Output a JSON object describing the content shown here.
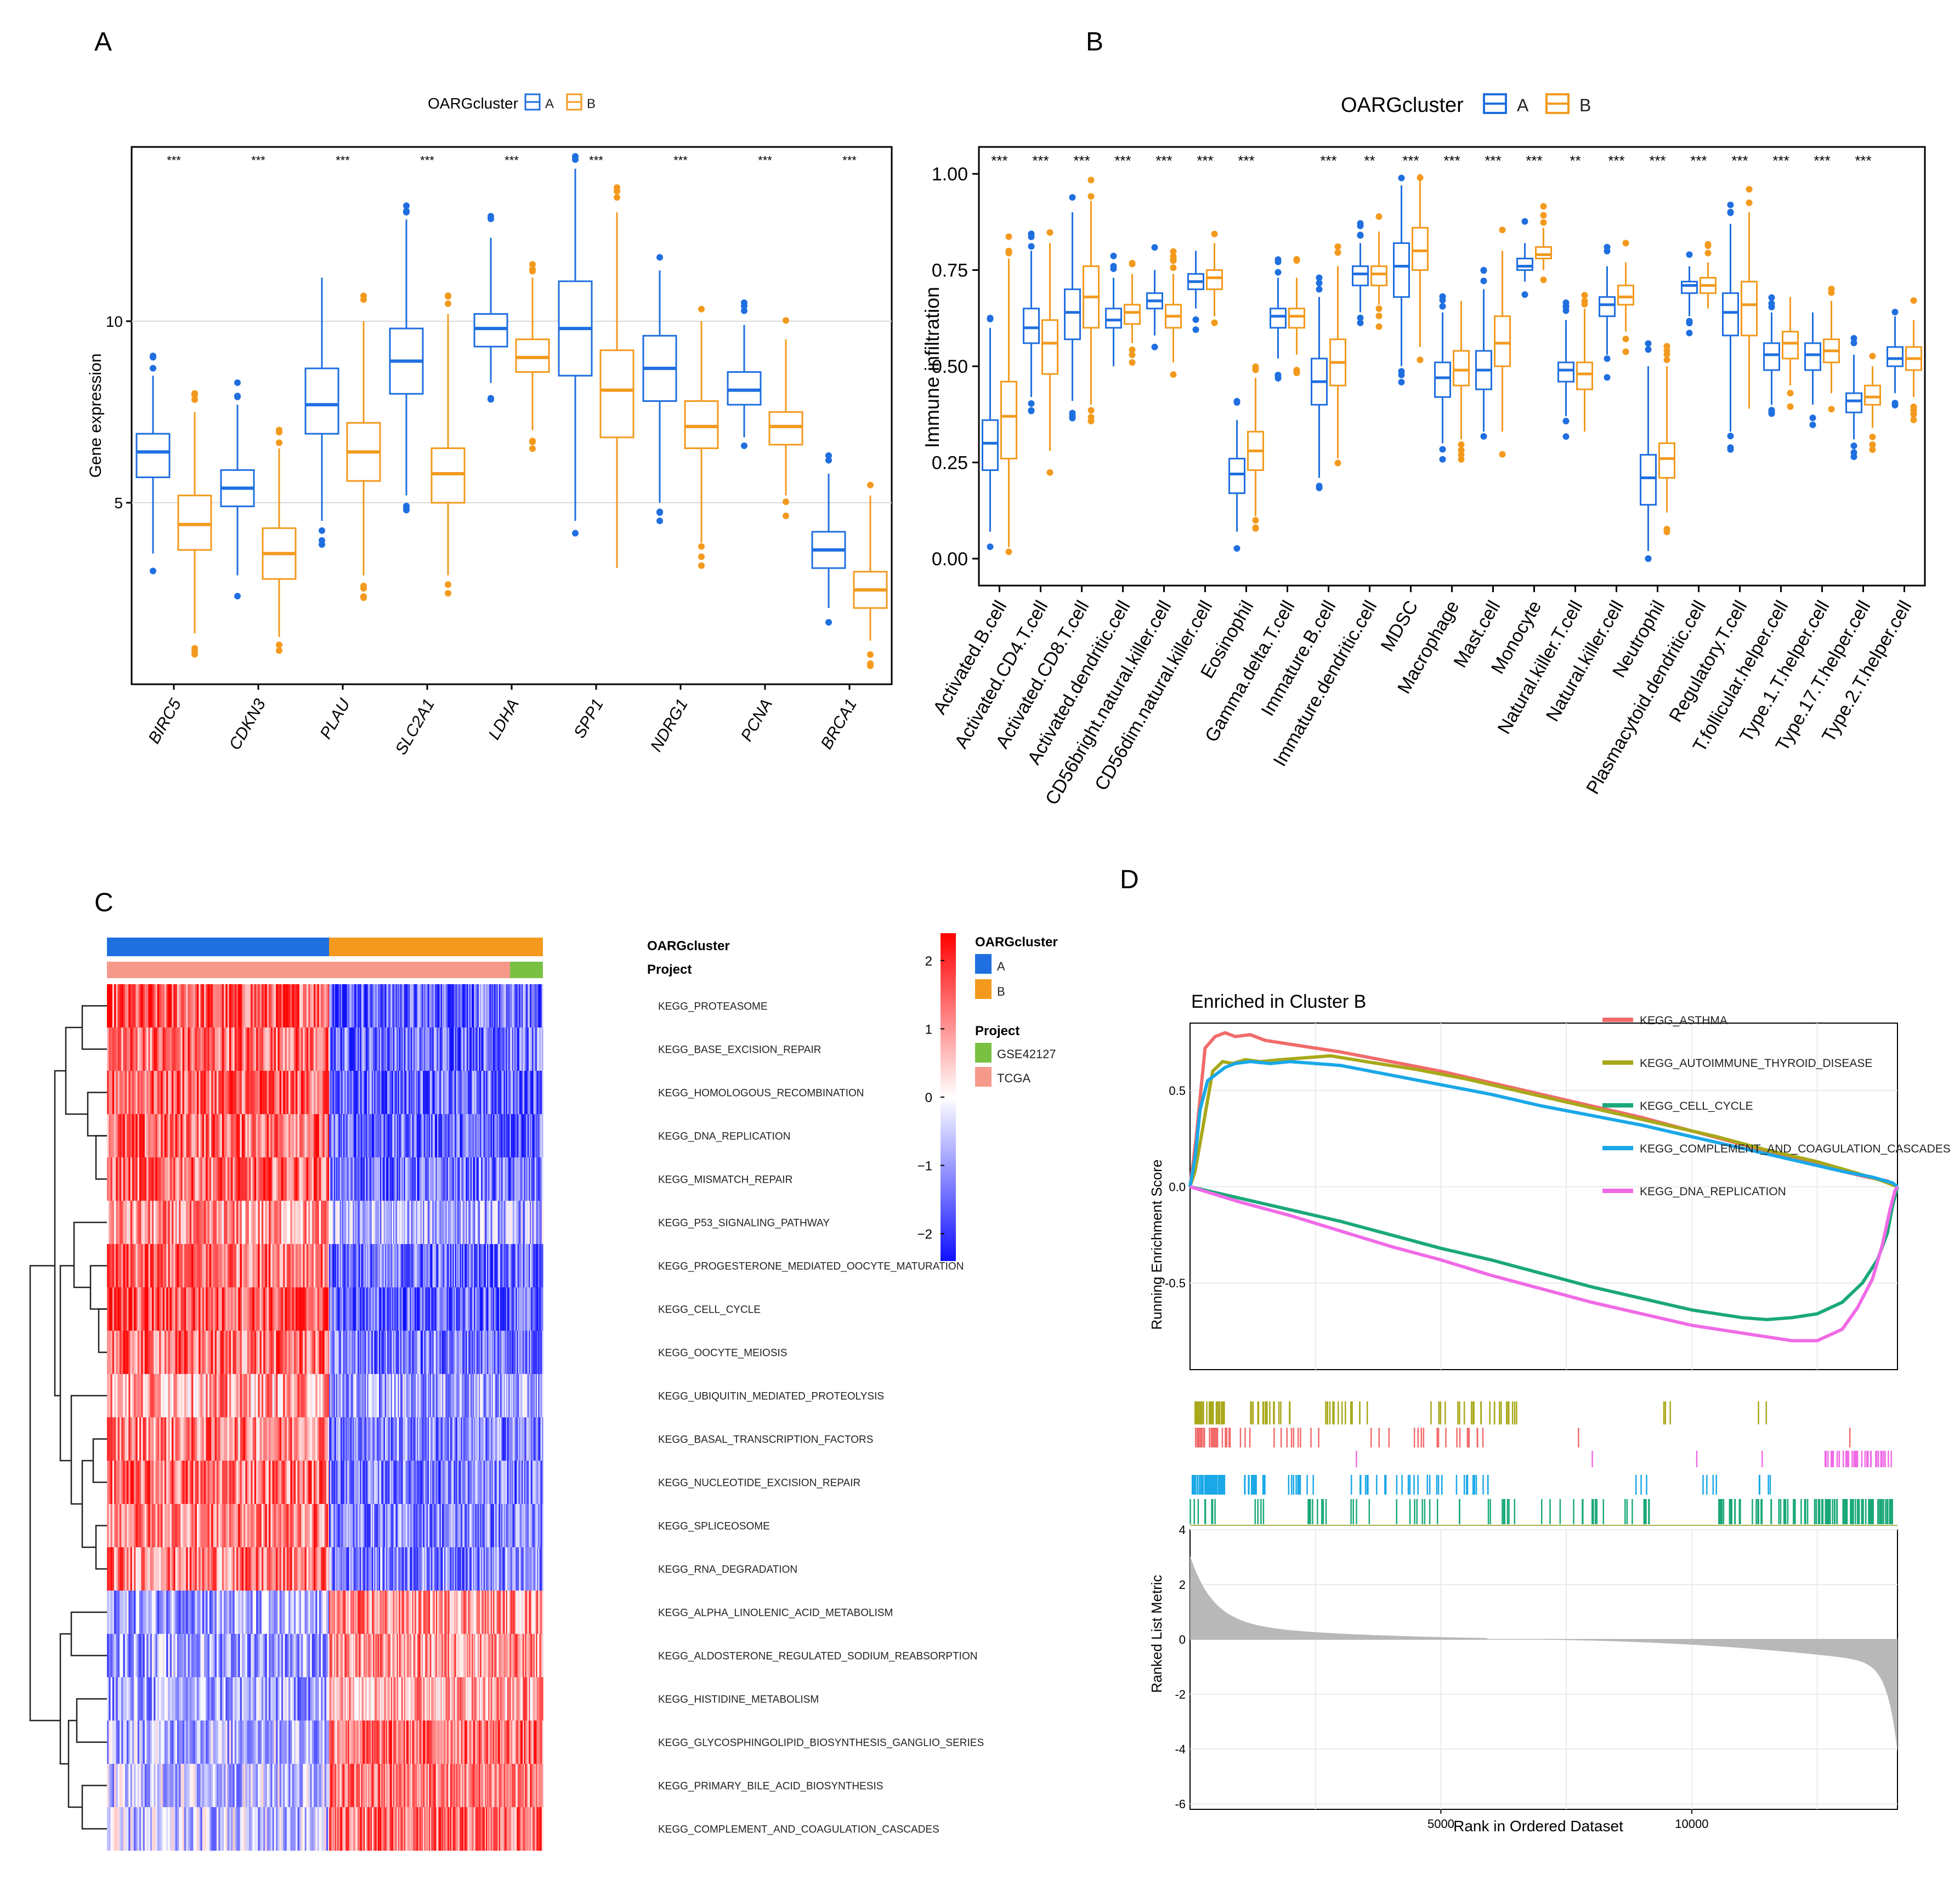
{
  "panels": {
    "a": "A",
    "b": "B",
    "c": "C",
    "d": "D"
  },
  "colors": {
    "cluster_a": "#1f6fe0",
    "cluster_b": "#f39a1e",
    "gse": "#7ac143",
    "tcga": "#f59a8a"
  },
  "chart_data": [
    {
      "id": "A",
      "type": "box",
      "legend_title": "OARGcluster",
      "legend_items": [
        "A",
        "B"
      ],
      "ylabel": "Gene expression",
      "yticks": [
        5,
        10
      ],
      "ylim": [
        0,
        14.8
      ],
      "categories": [
        "BIRC5",
        "CDKN3",
        "PLAU",
        "SLC2A1",
        "LDHA",
        "SPP1",
        "NDRG1",
        "PCNA",
        "BRCA1"
      ],
      "significance": [
        "***",
        "***",
        "***",
        "***",
        "***",
        "***",
        "***",
        "***",
        "***"
      ],
      "series": [
        {
          "name": "A",
          "boxes": [
            [
              3.6,
              5.7,
              6.4,
              6.9,
              8.5
            ],
            [
              3.0,
              4.9,
              5.4,
              5.9,
              7.7
            ],
            [
              4.5,
              6.9,
              7.7,
              8.7,
              11.2
            ],
            [
              5.2,
              8.0,
              8.9,
              9.8,
              12.8
            ],
            [
              8.3,
              9.3,
              9.8,
              10.2,
              12.3
            ],
            [
              4.5,
              8.5,
              9.8,
              11.1,
              14.2
            ],
            [
              5.0,
              7.8,
              8.7,
              9.6,
              11.4
            ],
            [
              6.8,
              7.7,
              8.1,
              8.6,
              9.9
            ],
            [
              2.1,
              3.2,
              3.7,
              4.2,
              5.8
            ]
          ]
        },
        {
          "name": "B",
          "boxes": [
            [
              1.4,
              3.7,
              4.4,
              5.2,
              7.5
            ],
            [
              1.3,
              2.9,
              3.6,
              4.3,
              6.5
            ],
            [
              3.0,
              5.6,
              6.4,
              7.2,
              10.0
            ],
            [
              3.0,
              5.0,
              5.8,
              6.5,
              10.2
            ],
            [
              7.0,
              8.6,
              9.0,
              9.5,
              11.2
            ],
            [
              3.2,
              6.8,
              8.1,
              9.2,
              13.0
            ],
            [
              3.9,
              6.5,
              7.1,
              7.8,
              10.0
            ],
            [
              5.2,
              6.6,
              7.1,
              7.5,
              9.5
            ],
            [
              1.2,
              2.1,
              2.6,
              3.1,
              5.2
            ]
          ]
        }
      ]
    },
    {
      "id": "B",
      "type": "box",
      "legend_title": "OARGcluster",
      "legend_items": [
        "A",
        "B"
      ],
      "ylabel": "Immune infiltration",
      "yticks": [
        "0.00",
        "0.25",
        "0.50",
        "0.75",
        "1.00"
      ],
      "ylim": [
        -0.07,
        1.07
      ],
      "categories": [
        "Activated.B.cell",
        "Activated.CD4.T.cell",
        "Activated.CD8.T.cell",
        "Activated.dendritic.cell",
        "CD56bright.natural.killer.cell",
        "CD56dim.natural.killer.cell",
        "Eosinophil",
        "Gamma.delta.T.cell",
        "Immature.B.cell",
        "Immature.dendritic.cell",
        "MDSC",
        "Macrophage",
        "Mast.cell",
        "Monocyte",
        "Natural.killer.T.cell",
        "Natural.killer.cell",
        "Neutrophil",
        "Plasmacytoid.dendritic.cell",
        "Regulatory.T.cell",
        "T.follicular.helper.cell",
        "Type.1.T.helper.cell",
        "Type.17.T.helper.cell",
        "Type.2.T.helper.cell"
      ],
      "significance": [
        "***",
        "***",
        "***",
        "***",
        "***",
        "***",
        "***",
        "",
        "***",
        "**",
        "***",
        "***",
        "***",
        "***",
        "**",
        "***",
        "***",
        "***",
        "***",
        "***",
        "***",
        "***",
        ""
      ],
      "series": [
        {
          "name": "A",
          "boxes": [
            [
              0.07,
              0.23,
              0.3,
              0.36,
              0.6
            ],
            [
              0.42,
              0.56,
              0.6,
              0.65,
              0.8
            ],
            [
              0.41,
              0.57,
              0.64,
              0.7,
              0.9
            ],
            [
              0.5,
              0.6,
              0.62,
              0.65,
              0.73
            ],
            [
              0.58,
              0.65,
              0.67,
              0.69,
              0.75
            ],
            [
              0.65,
              0.7,
              0.72,
              0.74,
              0.8
            ],
            [
              0.07,
              0.17,
              0.22,
              0.26,
              0.36
            ],
            [
              0.52,
              0.6,
              0.63,
              0.65,
              0.73
            ],
            [
              0.21,
              0.4,
              0.46,
              0.52,
              0.68
            ],
            [
              0.64,
              0.71,
              0.74,
              0.76,
              0.82
            ],
            [
              0.5,
              0.68,
              0.76,
              0.82,
              0.97
            ],
            [
              0.3,
              0.42,
              0.47,
              0.51,
              0.64
            ],
            [
              0.33,
              0.44,
              0.49,
              0.54,
              0.7
            ],
            [
              0.72,
              0.75,
              0.76,
              0.78,
              0.82
            ],
            [
              0.37,
              0.46,
              0.49,
              0.51,
              0.62
            ],
            [
              0.53,
              0.63,
              0.66,
              0.68,
              0.76
            ],
            [
              0.02,
              0.14,
              0.21,
              0.27,
              0.5
            ],
            [
              0.63,
              0.69,
              0.71,
              0.72,
              0.76
            ],
            [
              0.33,
              0.58,
              0.64,
              0.69,
              0.87
            ],
            [
              0.4,
              0.49,
              0.53,
              0.56,
              0.64
            ],
            [
              0.4,
              0.49,
              0.53,
              0.56,
              0.64
            ],
            [
              0.31,
              0.38,
              0.41,
              0.43,
              0.53
            ],
            [
              0.43,
              0.5,
              0.52,
              0.55,
              0.63
            ]
          ]
        },
        {
          "name": "B",
          "boxes": [
            [
              0.03,
              0.26,
              0.37,
              0.46,
              0.78
            ],
            [
              0.28,
              0.48,
              0.56,
              0.62,
              0.82
            ],
            [
              0.4,
              0.6,
              0.68,
              0.76,
              0.93
            ],
            [
              0.56,
              0.61,
              0.64,
              0.66,
              0.74
            ],
            [
              0.51,
              0.6,
              0.63,
              0.66,
              0.74
            ],
            [
              0.63,
              0.7,
              0.73,
              0.75,
              0.82
            ],
            [
              0.11,
              0.23,
              0.28,
              0.33,
              0.47
            ],
            [
              0.53,
              0.6,
              0.63,
              0.65,
              0.73
            ],
            [
              0.26,
              0.45,
              0.51,
              0.57,
              0.76
            ],
            [
              0.66,
              0.71,
              0.74,
              0.76,
              0.85
            ],
            [
              0.55,
              0.75,
              0.8,
              0.86,
              1.0
            ],
            [
              0.31,
              0.45,
              0.49,
              0.54,
              0.67
            ],
            [
              0.33,
              0.5,
              0.56,
              0.63,
              0.8
            ],
            [
              0.75,
              0.78,
              0.79,
              0.81,
              0.86
            ],
            [
              0.33,
              0.44,
              0.48,
              0.51,
              0.65
            ],
            [
              0.59,
              0.66,
              0.68,
              0.71,
              0.77
            ],
            [
              0.12,
              0.21,
              0.26,
              0.3,
              0.5
            ],
            [
              0.65,
              0.69,
              0.71,
              0.73,
              0.77
            ],
            [
              0.39,
              0.58,
              0.66,
              0.72,
              0.9
            ],
            [
              0.45,
              0.52,
              0.56,
              0.59,
              0.68
            ],
            [
              0.43,
              0.51,
              0.54,
              0.57,
              0.67
            ],
            [
              0.34,
              0.4,
              0.42,
              0.45,
              0.5
            ],
            [
              0.42,
              0.49,
              0.52,
              0.55,
              0.62
            ]
          ]
        }
      ]
    },
    {
      "id": "C",
      "type": "heatmap",
      "annotation_rows": [
        "OARGcluster",
        "Project"
      ],
      "legend_title_cluster": "OARGcluster",
      "legend_cluster_items": [
        "A",
        "B"
      ],
      "legend_title_project": "Project",
      "legend_project_items": [
        "GSE42127",
        "TCGA"
      ],
      "color_scale_ticks": [
        "2",
        "1",
        "0",
        "−1",
        "−2"
      ],
      "color_range": [
        -2.4,
        2.4
      ],
      "rows": [
        "KEGG_PROTEASOME",
        "KEGG_BASE_EXCISION_REPAIR",
        "KEGG_HOMOLOGOUS_RECOMBINATION",
        "KEGG_DNA_REPLICATION",
        "KEGG_MISMATCH_REPAIR",
        "KEGG_P53_SIGNALING_PATHWAY",
        "KEGG_PROGESTERONE_MEDIATED_OOCYTE_MATURATION",
        "KEGG_CELL_CYCLE",
        "KEGG_OOCYTE_MEIOSIS",
        "KEGG_UBIQUITIN_MEDIATED_PROTEOLYSIS",
        "KEGG_BASAL_TRANSCRIPTION_FACTORS",
        "KEGG_NUCLEOTIDE_EXCISION_REPAIR",
        "KEGG_SPLICEOSOME",
        "KEGG_RNA_DEGRADATION",
        "KEGG_ALPHA_LINOLENIC_ACID_METABOLISM",
        "KEGG_ALDOSTERONE_REGULATED_SODIUM_REABSORPTION",
        "KEGG_HISTIDINE_METABOLISM",
        "KEGG_GLYCOSPHINGOLIPID_BIOSYNTHESIS_GANGLIO_SERIES",
        "KEGG_PRIMARY_BILE_ACID_BIOSYNTHESIS",
        "KEGG_COMPLEMENT_AND_COAGULATION_CASCADES"
      ],
      "cluster_A_mean": [
        1.5,
        1.4,
        1.5,
        1.4,
        1.4,
        0.9,
        1.4,
        1.6,
        1.3,
        0.9,
        1.2,
        1.3,
        1.2,
        1.2,
        -0.9,
        -0.9,
        -0.9,
        -0.7,
        -0.6,
        -0.6
      ],
      "cluster_B_mean": [
        -1.5,
        -1.4,
        -1.5,
        -1.5,
        -1.4,
        -0.8,
        -1.4,
        -1.6,
        -1.3,
        -0.9,
        -1.2,
        -1.3,
        -1.2,
        -1.2,
        1.0,
        1.0,
        0.9,
        1.3,
        1.2,
        1.3
      ]
    },
    {
      "id": "D",
      "type": "line",
      "title": "Enriched in Cluster B",
      "xlabel": "Rank in Ordered Dataset",
      "ylabel_top": "Running Enrichment Score",
      "ylabel_bottom": "Ranked List Metric",
      "xlim": [
        0,
        14100
      ],
      "xticks": [
        "5000",
        "10000"
      ],
      "yticks_top": [
        "0.5",
        "0.0",
        "-0.5"
      ],
      "ylim_top": [
        -0.95,
        0.85
      ],
      "yticks_bottom": [
        "4",
        "2",
        "0",
        "-2",
        "-4",
        "-6"
      ],
      "ylim_bottom": [
        -6.2,
        4.0
      ],
      "series": [
        {
          "name": "KEGG_ASTHMA",
          "color": "#f26b6b",
          "x": [
            0,
            120,
            300,
            500,
            700,
            900,
            1200,
            1500,
            2000,
            2500,
            3000,
            4000,
            5000,
            6000,
            7000,
            8000,
            9000,
            10000,
            11000,
            12000,
            13000,
            13500,
            13900,
            14100
          ],
          "y": [
            0,
            0.25,
            0.72,
            0.78,
            0.8,
            0.78,
            0.79,
            0.76,
            0.74,
            0.72,
            0.7,
            0.65,
            0.6,
            0.54,
            0.48,
            0.42,
            0.36,
            0.29,
            0.22,
            0.15,
            0.08,
            0.05,
            0.03,
            0.0
          ]
        },
        {
          "name": "KEGG_AUTOIMMUNE_THYROID_DISEASE",
          "color": "#a8a81a",
          "x": [
            0,
            100,
            250,
            450,
            650,
            850,
            1100,
            1400,
            1800,
            2300,
            2800,
            3500,
            4500,
            5500,
            6500,
            7500,
            8500,
            9500,
            10500,
            11500,
            12500,
            13300,
            13800,
            14100
          ],
          "y": [
            0,
            0.08,
            0.3,
            0.6,
            0.65,
            0.64,
            0.66,
            0.65,
            0.66,
            0.67,
            0.68,
            0.65,
            0.61,
            0.56,
            0.5,
            0.44,
            0.38,
            0.32,
            0.26,
            0.19,
            0.13,
            0.07,
            0.03,
            0.0
          ]
        },
        {
          "name": "KEGG_CELL_CYCLE",
          "color": "#1aa87a",
          "x": [
            0,
            500,
            1000,
            2000,
            3000,
            4000,
            5000,
            6000,
            7000,
            8000,
            9000,
            10000,
            10500,
            11000,
            11500,
            12000,
            12500,
            13000,
            13400,
            13700,
            13900,
            14000,
            14100
          ],
          "y": [
            0,
            -0.03,
            -0.06,
            -0.12,
            -0.18,
            -0.25,
            -0.32,
            -0.38,
            -0.45,
            -0.52,
            -0.58,
            -0.64,
            -0.66,
            -0.68,
            -0.69,
            -0.68,
            -0.66,
            -0.6,
            -0.5,
            -0.38,
            -0.24,
            -0.1,
            0.0
          ]
        },
        {
          "name": "KEGG_COMPLEMENT_AND_COAGULATION_CASCADES",
          "color": "#1aa8e8",
          "x": [
            0,
            100,
            200,
            350,
            500,
            700,
            900,
            1200,
            1600,
            2000,
            2500,
            3000,
            4000,
            5000,
            6000,
            7000,
            8000,
            9000,
            10000,
            11000,
            12000,
            13000,
            13600,
            14000,
            14100
          ],
          "y": [
            0,
            0.15,
            0.4,
            0.55,
            0.58,
            0.62,
            0.64,
            0.65,
            0.64,
            0.65,
            0.64,
            0.63,
            0.58,
            0.53,
            0.48,
            0.42,
            0.37,
            0.32,
            0.26,
            0.2,
            0.14,
            0.08,
            0.05,
            0.02,
            0.0
          ]
        },
        {
          "name": "KEGG_DNA_REPLICATION",
          "color": "#f06ae6",
          "x": [
            0,
            500,
            1000,
            2000,
            3000,
            4000,
            5000,
            6000,
            7000,
            8000,
            9000,
            10000,
            11000,
            11500,
            12000,
            12500,
            13000,
            13300,
            13600,
            13800,
            13950,
            14050,
            14100
          ],
          "y": [
            0,
            -0.04,
            -0.08,
            -0.15,
            -0.23,
            -0.31,
            -0.38,
            -0.46,
            -0.53,
            -0.6,
            -0.66,
            -0.72,
            -0.76,
            -0.78,
            -0.8,
            -0.8,
            -0.74,
            -0.63,
            -0.48,
            -0.3,
            -0.12,
            -0.02,
            0.0
          ]
        }
      ]
    }
  ]
}
